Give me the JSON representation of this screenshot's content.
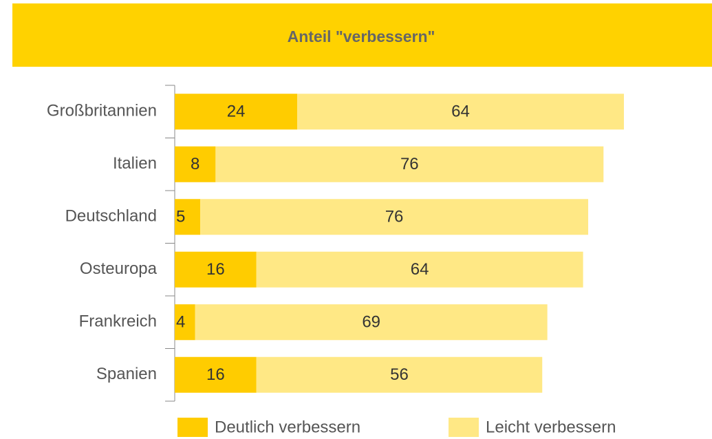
{
  "chart_data": {
    "type": "stacked_bar_horizontal",
    "title": "Anteil \"verbessern\"",
    "categories": [
      "Großbritannien",
      "Italien",
      "Deutschland",
      "Osteuropa",
      "Frankreich",
      "Spanien"
    ],
    "series": [
      {
        "name": "Deutlich verbessern",
        "color": "#FFCC00",
        "values": [
          24,
          8,
          5,
          16,
          4,
          16
        ]
      },
      {
        "name": "Leicht verbessern",
        "color": "#FFE885",
        "values": [
          64,
          76,
          76,
          64,
          69,
          56
        ]
      }
    ]
  }
}
